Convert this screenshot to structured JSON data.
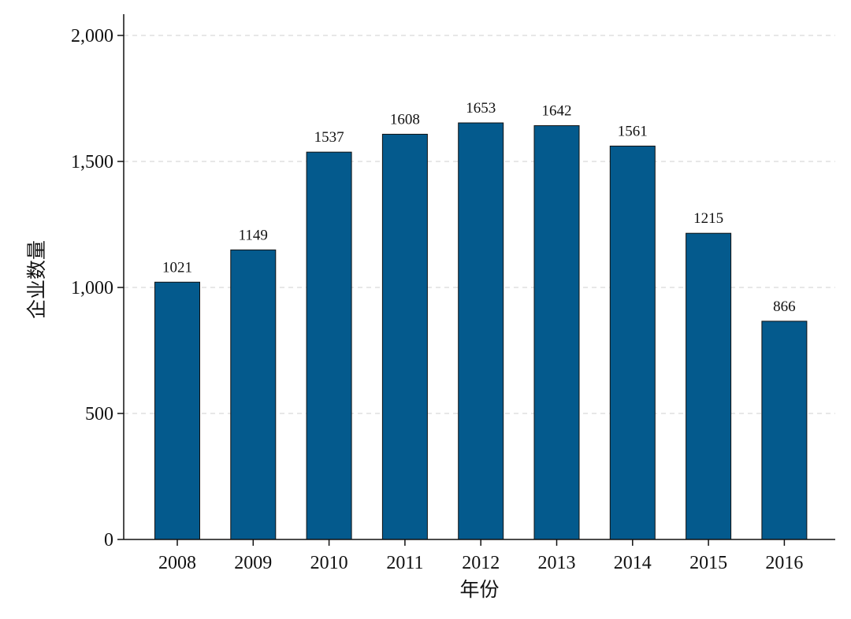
{
  "chart_data": {
    "type": "bar",
    "categories": [
      "2008",
      "2009",
      "2010",
      "2011",
      "2012",
      "2013",
      "2014",
      "2015",
      "2016"
    ],
    "values": [
      1021,
      1149,
      1537,
      1608,
      1653,
      1642,
      1561,
      1215,
      866
    ],
    "data_labels": [
      "1021",
      "1149",
      "1537",
      "1608",
      "1653",
      "1642",
      "1561",
      "1215",
      "866"
    ],
    "title": "",
    "xlabel": "年份",
    "ylabel": "企业数量",
    "ylim": [
      0,
      2000
    ],
    "yticks": [
      0,
      500,
      1000,
      1500,
      2000
    ],
    "ytick_labels": [
      "0",
      "500",
      "1,000",
      "1,500",
      "2,000"
    ],
    "grid": "horizontal-dashed",
    "legend": "none",
    "colors": {
      "bar": "#045a8d",
      "edge": "#111111",
      "grid": "#cfcfcf"
    }
  }
}
